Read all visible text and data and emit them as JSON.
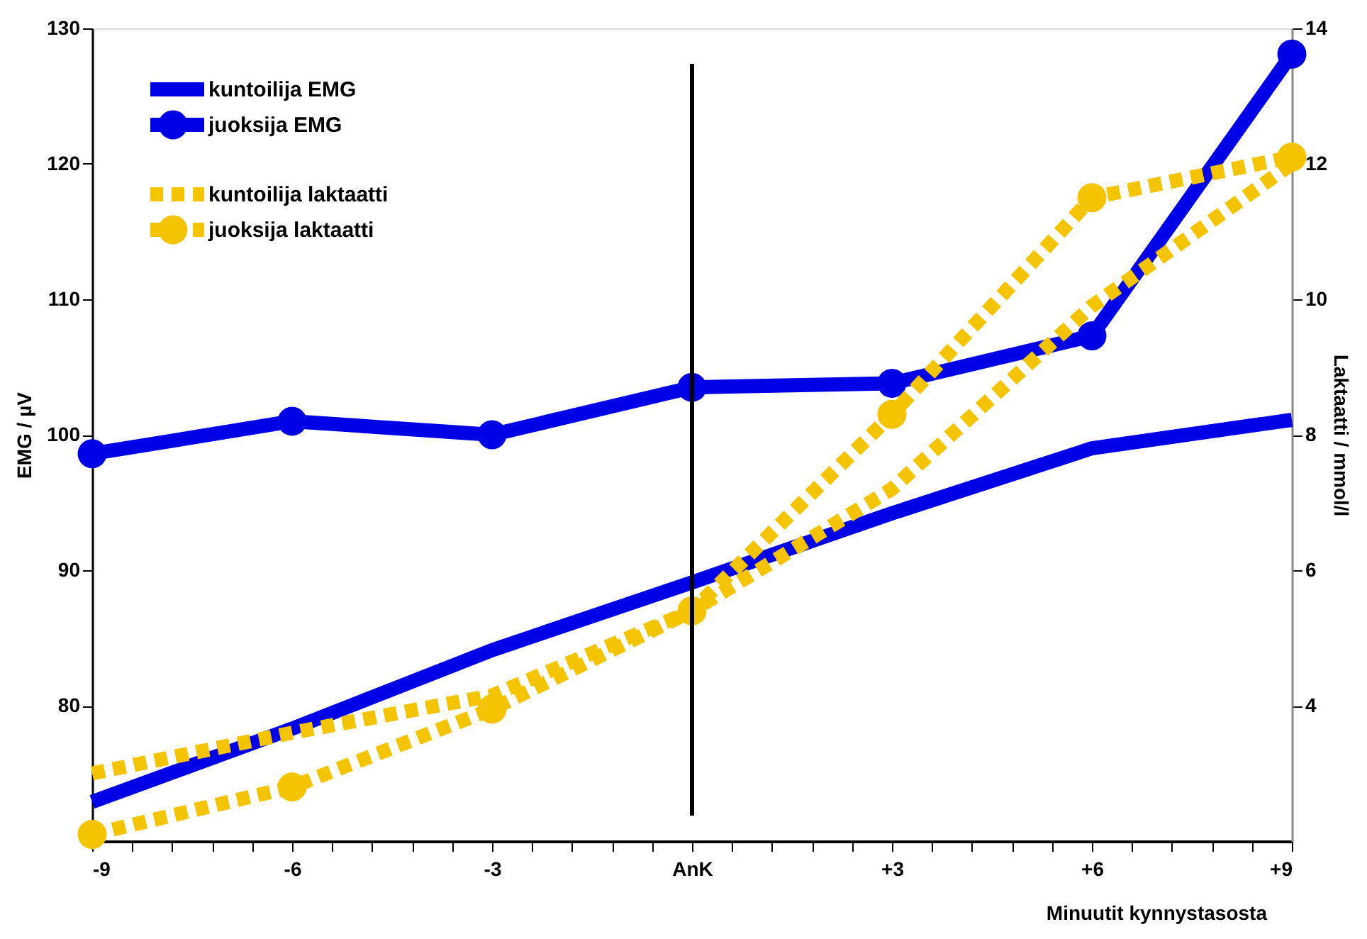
{
  "chart_data": {
    "type": "line",
    "xlabel": "Minuutit kynnystasosta",
    "ylabel": "EMG / µV",
    "y2label": "Laktaatti / mmol/l",
    "x": [
      -9,
      -6,
      -3,
      0,
      3,
      6,
      9
    ],
    "xlim": [
      -9,
      9
    ],
    "xticks": [
      -9,
      {
        "value": -8.4,
        "label": null
      },
      {
        "value": -7.8,
        "label": null
      },
      {
        "value": -7.2,
        "label": null
      },
      {
        "value": -6.6,
        "label": null
      },
      -6,
      {
        "value": -5.4,
        "label": null
      },
      {
        "value": -4.8,
        "label": null
      },
      {
        "value": -4.2,
        "label": null
      },
      {
        "value": -3.6,
        "label": null
      },
      -3,
      {
        "value": -2.4,
        "label": null
      },
      {
        "value": -1.8,
        "label": null
      },
      {
        "value": -1.2,
        "label": null
      },
      {
        "value": -0.6,
        "label": null
      },
      {
        "value": 0,
        "label": "AnK"
      },
      {
        "value": 0.6,
        "label": null
      },
      {
        "value": 1.2,
        "label": null
      },
      {
        "value": 1.8,
        "label": null
      },
      {
        "value": 2.4,
        "label": null
      },
      {
        "value": 3,
        "label": "+3"
      },
      {
        "value": 3.6,
        "label": null
      },
      {
        "value": 4.2,
        "label": null
      },
      {
        "value": 4.8,
        "label": null
      },
      {
        "value": 5.4,
        "label": null
      },
      {
        "value": 6,
        "label": "+6"
      },
      {
        "value": 6.6,
        "label": null
      },
      {
        "value": 7.2,
        "label": null
      },
      {
        "value": 7.8,
        "label": null
      },
      {
        "value": 8.4,
        "label": null
      },
      {
        "value": 9,
        "label": "+9"
      }
    ],
    "ylim": [
      70,
      130
    ],
    "yticks": [
      80,
      90,
      100,
      110,
      120,
      130
    ],
    "y2lim": [
      2,
      14
    ],
    "y2ticks": [
      4,
      6,
      8,
      10,
      12,
      14
    ],
    "grid": false,
    "legend": "top left",
    "ref_lines": [
      {
        "axis": "x",
        "value": 0,
        "color": "#000000"
      }
    ],
    "series": [
      {
        "name": "kuntoilija EMG",
        "color": "#0000e6",
        "line_style": "solid",
        "marker": "none",
        "values": [
          72.9,
          78.3,
          84.1,
          89.1,
          94.2,
          99.0,
          101.1
        ]
      },
      {
        "name": "juoksija EMG",
        "color": "#0000e6",
        "line_style": "solid",
        "marker": "circle",
        "values": [
          98.6,
          101.0,
          100.0,
          103.5,
          103.8,
          107.3,
          128.1
        ]
      },
      {
        "name": "kuntoilija laktaatti",
        "color": "#f5c400",
        "line_style": "dashed",
        "marker": "none",
        "axis": "y2",
        "values": [
          3.0,
          3.6,
          4.15,
          5.4,
          7.2,
          9.9,
          12.0
        ]
      },
      {
        "name": "juoksija laktaatti",
        "color": "#f5c400",
        "line_style": "dashed",
        "marker": "circle",
        "axis": "y2",
        "values": [
          2.1,
          2.8,
          3.95,
          5.4,
          8.3,
          11.5,
          12.1
        ]
      }
    ]
  }
}
